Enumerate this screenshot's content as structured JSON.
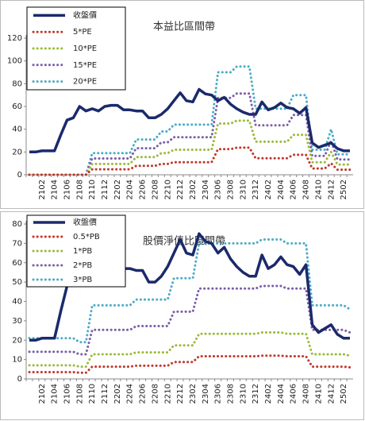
{
  "chart_data": [
    {
      "type": "line",
      "title": "本益比區間帶",
      "legend": "upper left",
      "grid": false,
      "categories": [
        null,
        null,
        "2102",
        null,
        "2104",
        null,
        "2106",
        null,
        "2108",
        null,
        "2110",
        null,
        "2112",
        null,
        "2202",
        null,
        "2204",
        null,
        "2206",
        null,
        "2208",
        null,
        "2210",
        null,
        "2212",
        null,
        "2302",
        null,
        "2304",
        null,
        "2306",
        null,
        "2308",
        null,
        "2310",
        null,
        "2312",
        null,
        "2402",
        null,
        "2404",
        null,
        "2406",
        null,
        "2408",
        null,
        "2410",
        null,
        "2412",
        null,
        "2502",
        null
      ],
      "ylim": [
        0,
        120
      ],
      "yticks": [
        0,
        20,
        40,
        60,
        80,
        100,
        120
      ],
      "series": [
        {
          "name": "收盤價",
          "color": "#1b2a6b",
          "values": [
            20,
            20,
            21,
            21,
            21,
            35,
            48,
            50,
            60,
            56,
            58,
            56,
            60,
            61,
            61,
            57,
            57,
            56,
            56,
            50,
            50,
            53,
            58,
            65,
            72,
            65,
            64,
            75,
            71,
            70,
            65,
            68,
            62,
            58,
            55,
            53,
            53,
            64,
            57,
            59,
            63,
            59,
            58,
            54,
            59,
            28,
            24,
            26,
            28,
            23,
            21,
            21
          ]
        },
        {
          "name": "5*PE",
          "color": "#c0392b",
          "values": [
            0,
            0,
            0,
            0,
            0,
            0,
            0,
            0,
            0,
            0,
            4.8,
            4.8,
            4.8,
            4.8,
            4.8,
            4.8,
            4.8,
            7.8,
            7.8,
            7.8,
            7.8,
            9.5,
            9.5,
            11,
            11,
            11,
            11,
            11,
            11,
            11,
            22.5,
            22.5,
            22.5,
            23.8,
            23.8,
            23.8,
            14.5,
            14.5,
            14.5,
            14.5,
            14.5,
            14.5,
            17.5,
            17.5,
            17.5,
            5.5,
            5.5,
            5.5,
            10,
            4.5,
            4.5,
            4.5
          ]
        },
        {
          "name": "10*PE",
          "color": "#9bbb3a",
          "values": [
            0,
            0,
            0,
            0,
            0,
            0,
            0,
            0,
            0,
            0,
            9.5,
            9.5,
            9.5,
            9.5,
            9.5,
            9.5,
            9.5,
            15.5,
            15.5,
            15.5,
            15.5,
            19,
            19,
            22,
            22,
            22,
            22,
            22,
            22,
            22,
            45,
            45,
            45,
            47.5,
            47.5,
            47.5,
            29,
            29,
            29,
            29,
            29,
            29,
            35,
            35,
            35,
            11,
            11,
            11,
            20,
            9,
            9,
            9
          ]
        },
        {
          "name": "15*PE",
          "color": "#7b5ea7",
          "values": [
            0,
            0,
            0,
            0,
            0,
            0,
            0,
            0,
            0,
            0,
            14.3,
            14.3,
            14.3,
            14.3,
            14.3,
            14.3,
            14.3,
            23.3,
            23.3,
            23.3,
            23.3,
            28.5,
            28.5,
            33,
            33,
            33,
            33,
            33,
            33,
            33,
            67.5,
            67.5,
            67.5,
            71.3,
            71.3,
            71.3,
            43.5,
            43.5,
            43.5,
            43.5,
            43.5,
            43.5,
            52.5,
            52.5,
            52.5,
            16.5,
            16.5,
            16.5,
            30,
            13.5,
            13.5,
            13.5
          ]
        },
        {
          "name": "20*PE",
          "color": "#4bacc6",
          "values": [
            0,
            0,
            0,
            0,
            0,
            0,
            0,
            0,
            0,
            0,
            19,
            19,
            19,
            19,
            19,
            19,
            19,
            31,
            31,
            31,
            31,
            38,
            38,
            44,
            44,
            44,
            44,
            44,
            44,
            44,
            90,
            90,
            90,
            95,
            95,
            95,
            58,
            58,
            58,
            58,
            58,
            58,
            70,
            70,
            70,
            22,
            22,
            22,
            40,
            18,
            18,
            18
          ]
        }
      ]
    },
    {
      "type": "line",
      "title": "股價淨值比區間帶",
      "legend": "upper left",
      "grid": false,
      "categories": [
        null,
        null,
        "2102",
        null,
        "2104",
        null,
        "2106",
        null,
        "2108",
        null,
        "2110",
        null,
        "2112",
        null,
        "2202",
        null,
        "2204",
        null,
        "2206",
        null,
        "2208",
        null,
        "2210",
        null,
        "2212",
        null,
        "2302",
        null,
        "2304",
        null,
        "2306",
        null,
        "2308",
        null,
        "2310",
        null,
        "2312",
        null,
        "2402",
        null,
        "2404",
        null,
        "2406",
        null,
        "2408",
        null,
        "2410",
        null,
        "2412",
        null,
        "2502",
        null
      ],
      "ylim": [
        0,
        80
      ],
      "yticks": [
        0,
        10,
        20,
        30,
        40,
        50,
        60,
        70,
        80
      ],
      "series": [
        {
          "name": "收盤價",
          "color": "#1b2a6b",
          "values": [
            20,
            20,
            21,
            21,
            21,
            35,
            48,
            50,
            60,
            56,
            58,
            56,
            60,
            61,
            61,
            57,
            57,
            56,
            56,
            50,
            50,
            53,
            58,
            65,
            72,
            65,
            64,
            75,
            71,
            70,
            65,
            68,
            62,
            58,
            55,
            53,
            53,
            64,
            57,
            59,
            63,
            59,
            58,
            54,
            59,
            28,
            24,
            26,
            28,
            23,
            21,
            21
          ]
        },
        {
          "name": "0.5*PB",
          "color": "#c0392b",
          "values": [
            3.5,
            3.5,
            3.5,
            3.5,
            3.5,
            3.5,
            3.5,
            3.5,
            3.2,
            3.2,
            6.3,
            6.3,
            6.3,
            6.3,
            6.3,
            6.3,
            6.3,
            6.8,
            6.8,
            6.8,
            6.8,
            6.8,
            6.8,
            8.7,
            8.7,
            8.7,
            8.7,
            11.7,
            11.7,
            11.7,
            11.7,
            11.7,
            11.7,
            11.7,
            11.7,
            11.7,
            11.7,
            12,
            12,
            12,
            12,
            11.7,
            11.7,
            11.7,
            11.7,
            6.3,
            6.3,
            6.3,
            6.3,
            6.3,
            6.3,
            6
          ]
        },
        {
          "name": "1*PB",
          "color": "#9bbb3a",
          "values": [
            7,
            7,
            7,
            7,
            7,
            7,
            7,
            7,
            6.3,
            6.3,
            12.7,
            12.7,
            12.7,
            12.7,
            12.7,
            12.7,
            12.7,
            13.7,
            13.7,
            13.7,
            13.7,
            13.7,
            13.7,
            17.3,
            17.3,
            17.3,
            17.3,
            23.3,
            23.3,
            23.3,
            23.3,
            23.3,
            23.3,
            23.3,
            23.3,
            23.3,
            23.3,
            24,
            24,
            24,
            24,
            23.3,
            23.3,
            23.3,
            23.3,
            12.7,
            12.7,
            12.7,
            12.7,
            12.7,
            12.7,
            12
          ]
        },
        {
          "name": "2*PB",
          "color": "#7b5ea7",
          "values": [
            14,
            14,
            14,
            14,
            14,
            14,
            14,
            14,
            12.7,
            12.7,
            25.3,
            25.3,
            25.3,
            25.3,
            25.3,
            25.3,
            25.3,
            27.3,
            27.3,
            27.3,
            27.3,
            27.3,
            27.3,
            34.7,
            34.7,
            34.7,
            34.7,
            46.7,
            46.7,
            46.7,
            46.7,
            46.7,
            46.7,
            46.7,
            46.7,
            46.7,
            46.7,
            48,
            48,
            48,
            48,
            46.7,
            46.7,
            46.7,
            46.7,
            25.3,
            25.3,
            25.3,
            25.3,
            25.3,
            25.3,
            24
          ]
        },
        {
          "name": "3*PB",
          "color": "#4bacc6",
          "values": [
            21,
            21,
            21,
            21,
            21,
            21,
            21,
            21,
            19,
            19,
            38,
            38,
            38,
            38,
            38,
            38,
            38,
            41,
            41,
            41,
            41,
            41,
            41,
            52,
            52,
            52,
            52,
            70,
            70,
            70,
            70,
            70,
            70,
            70,
            70,
            70,
            70,
            72,
            72,
            72,
            72,
            70,
            70,
            70,
            70,
            38,
            38,
            38,
            38,
            38,
            38,
            36
          ]
        }
      ]
    }
  ]
}
